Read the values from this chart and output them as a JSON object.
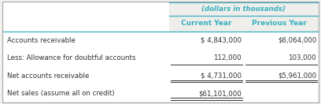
{
  "header_label": "(dollars in thousands)",
  "col1_header": "Current Year",
  "col2_header": "Previous Year",
  "rows": [
    {
      "label": "Accounts receivable",
      "col1": "$ 4,843,000",
      "col2": "$6,064,000"
    },
    {
      "label": "Less: Allowance for doubtful accounts",
      "col1": "112,000",
      "col2": "103,000"
    },
    {
      "label": "Net accounts receivable",
      "col1": "$ 4,731,000",
      "col2": "$5,961,000"
    },
    {
      "label": "Net sales (assume all on credit)",
      "col1": "$61,101,000",
      "col2": ""
    }
  ],
  "header_color": "#3ab0c0",
  "bg_color": "#f2f2ef",
  "cell_bg": "#ffffff",
  "border_color": "#aaaaaa",
  "text_color": "#333333",
  "fig_width": 4.08,
  "fig_height": 1.32,
  "dpi": 100
}
